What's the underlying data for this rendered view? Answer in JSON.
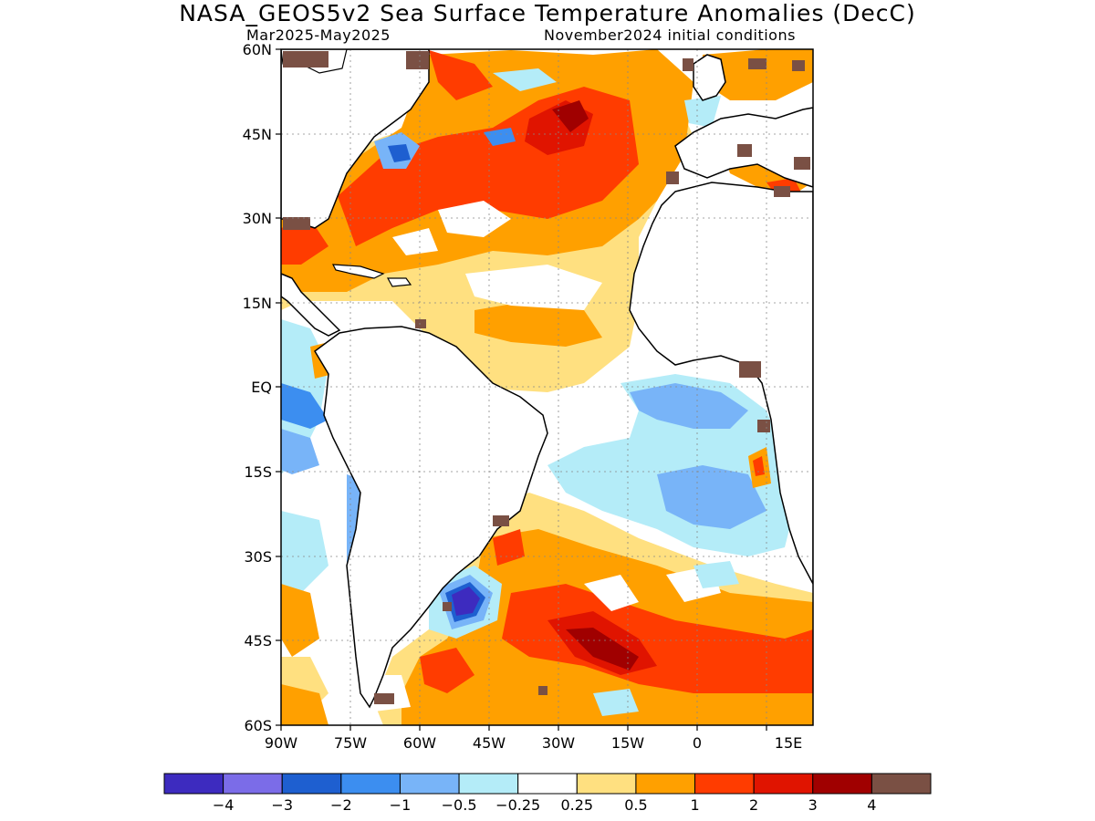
{
  "title": "NASA_GEOS5v2 Sea Surface Temperature Anomalies (DecC)",
  "subtitle_left": "Mar2025-May2025",
  "subtitle_right": "November2024 initial conditions",
  "map": {
    "region": "Atlantic Ocean",
    "lon_range": [
      -90,
      25
    ],
    "lat_range": [
      -60,
      60
    ],
    "lat_ticks": [
      "60N",
      "45N",
      "30N",
      "15N",
      "EQ",
      "15S",
      "30S",
      "45S",
      "60S"
    ],
    "lon_ticks": [
      "90W",
      "75W",
      "60W",
      "45W",
      "30W",
      "15W",
      "0",
      "15E"
    ],
    "gridlines": true
  },
  "colorbar": {
    "colors": [
      "#3d2bbf",
      "#7b6ce8",
      "#1e5fd0",
      "#3c8ef0",
      "#78b4f8",
      "#b4ecf8",
      "#ffffff",
      "#ffe080",
      "#ffa000",
      "#ff3c00",
      "#e01400",
      "#a00000",
      "#7a5044"
    ],
    "labels": [
      "-4",
      "-3",
      "-2",
      "-1",
      "-0.5",
      "-0.25",
      "0.25",
      "0.5",
      "1",
      "2",
      "3",
      "4"
    ]
  }
}
